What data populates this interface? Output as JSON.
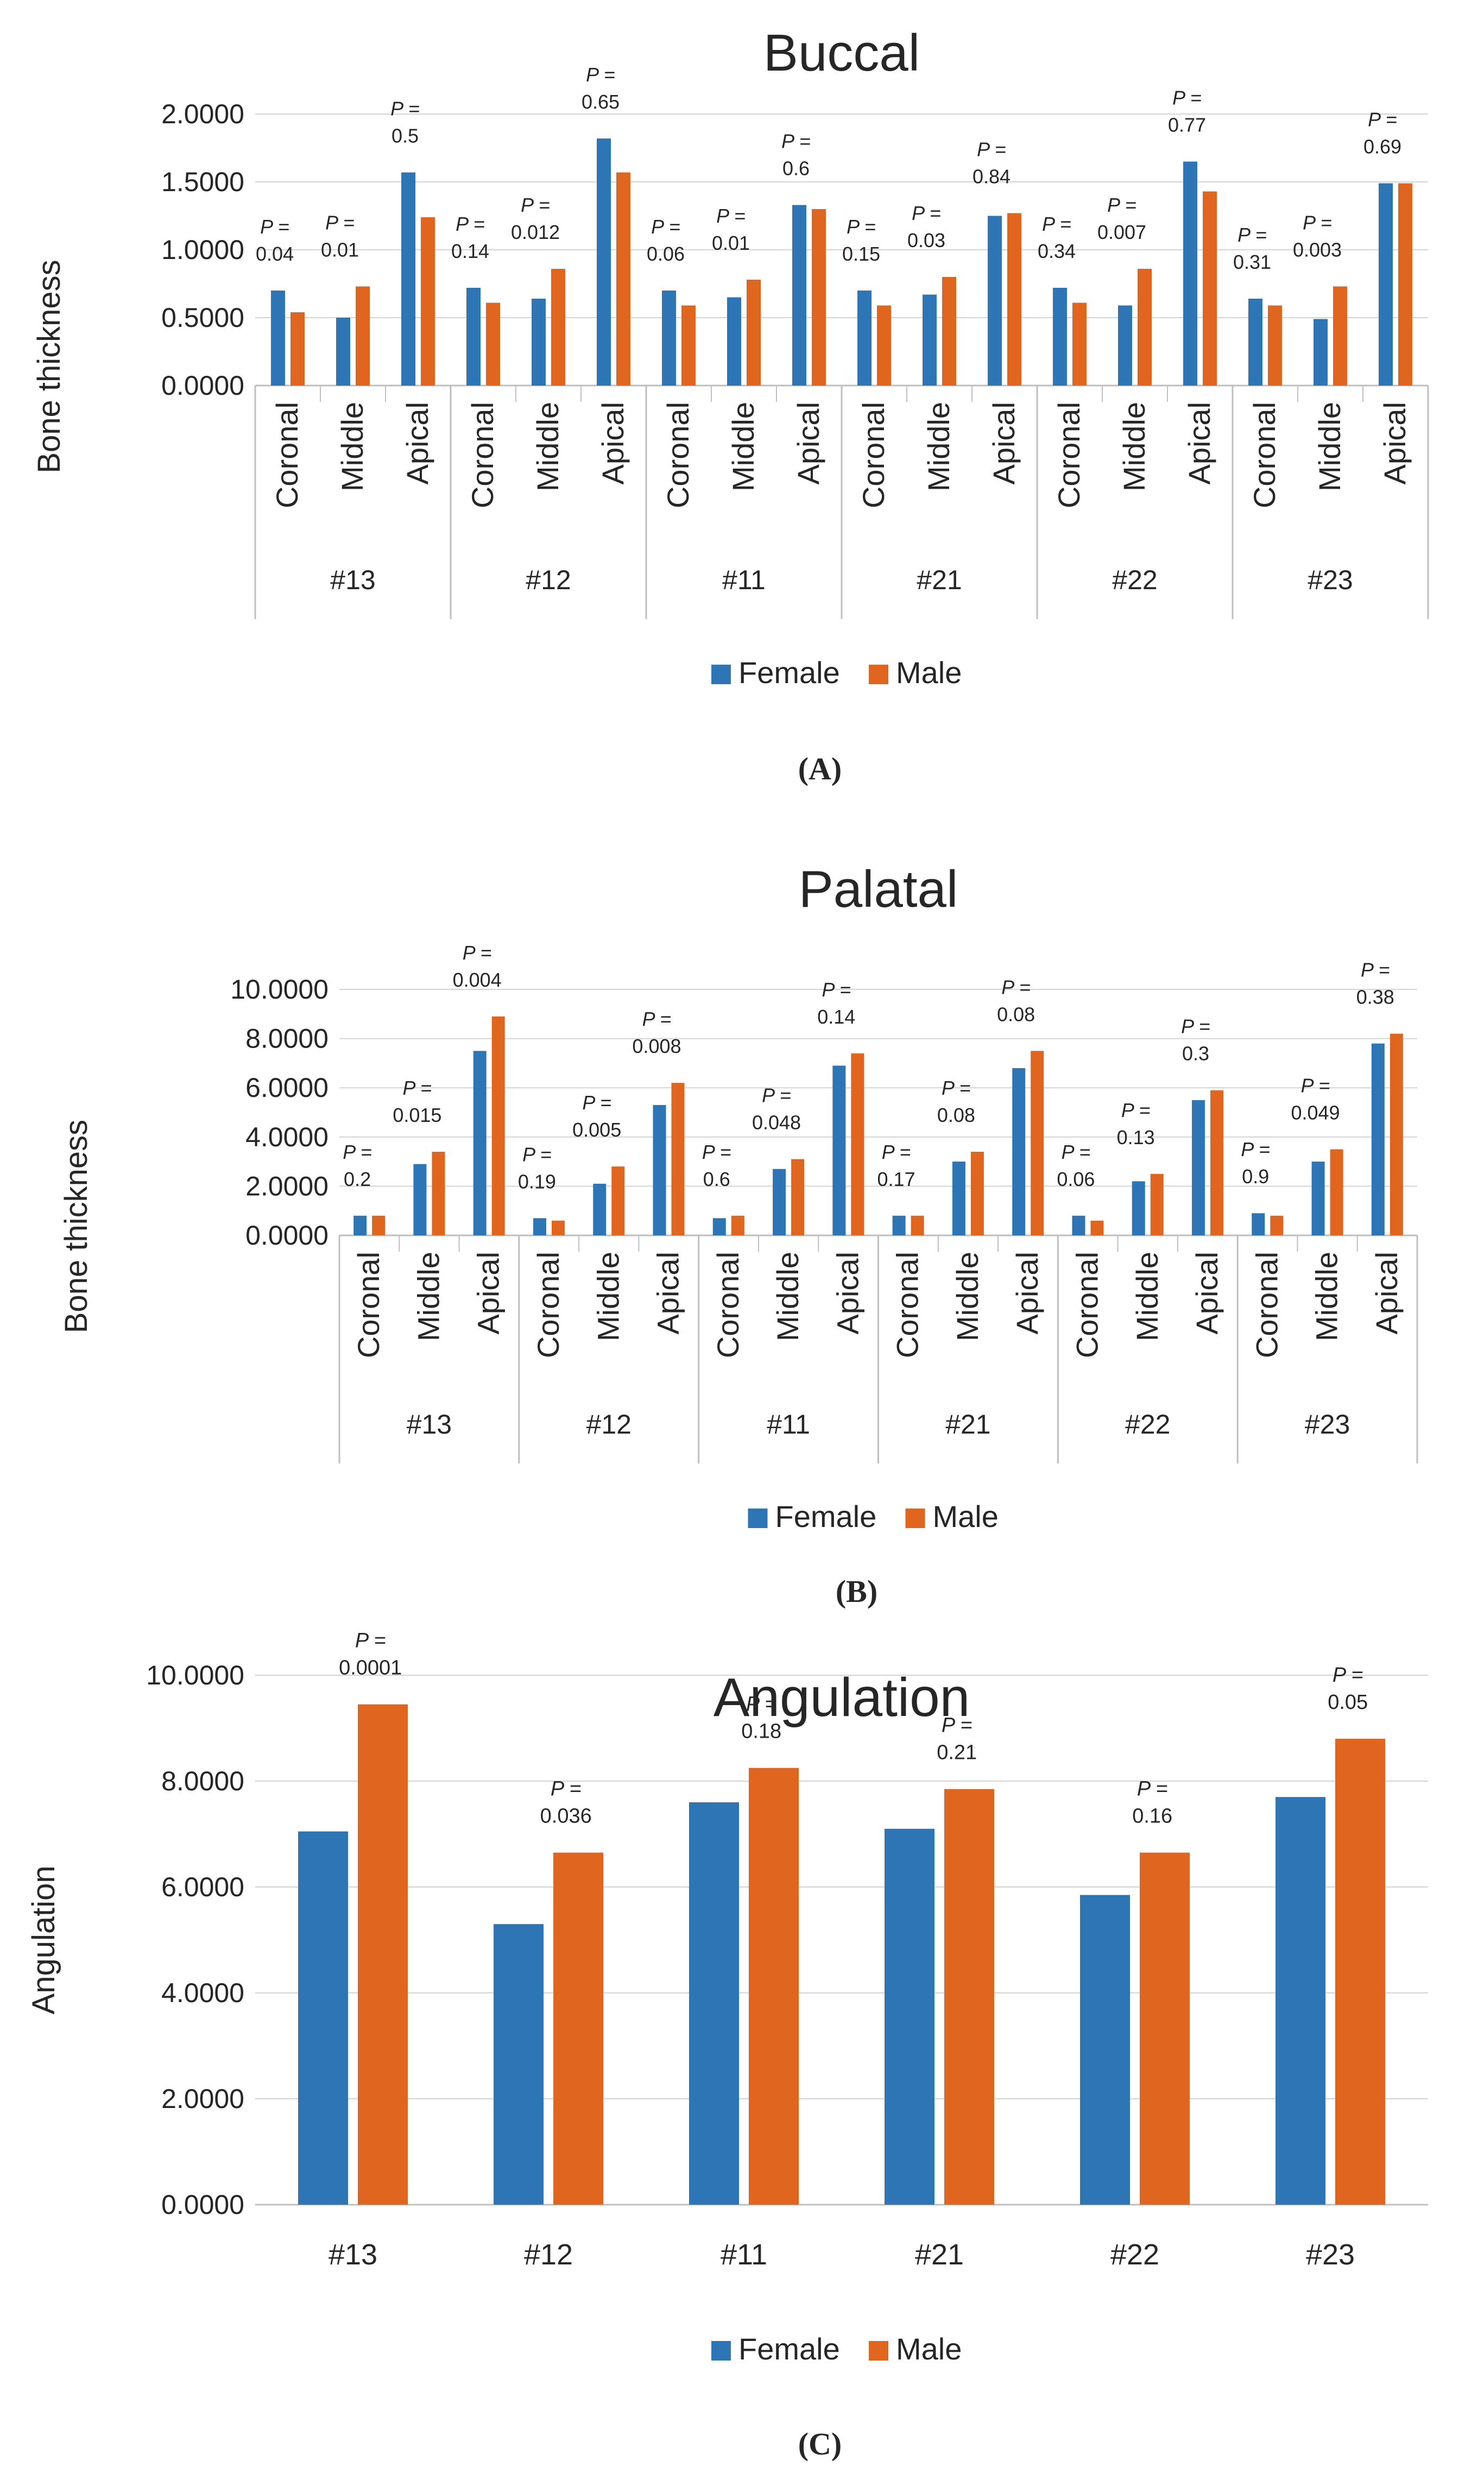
{
  "colors": {
    "female": "#2E75B6",
    "male": "#E0651E",
    "grid": "#d4d4d4",
    "axis": "#bfbfbf",
    "text": "#262626"
  },
  "chart_data": [
    {
      "id": "A",
      "type": "bar",
      "title": "Buccal",
      "caption": "(A)",
      "ylabel": "Bone thickness",
      "ylim": [
        0,
        2
      ],
      "yticks": [
        "0.0000",
        "0.5000",
        "1.0000",
        "1.5000",
        "2.0000"
      ],
      "ytick_values": [
        0,
        0.5,
        1,
        1.5,
        2
      ],
      "groups": [
        "#13",
        "#12",
        "#11",
        "#21",
        "#22",
        "#23"
      ],
      "subcategories": [
        "Coronal",
        "Middle",
        "Apical"
      ],
      "series": [
        {
          "name": "Female",
          "values": [
            0.7,
            0.5,
            1.57,
            0.72,
            0.64,
            1.82,
            0.7,
            0.65,
            1.33,
            0.7,
            0.67,
            1.25,
            0.72,
            0.59,
            1.65,
            0.64,
            0.49,
            1.49
          ]
        },
        {
          "name": "Male",
          "values": [
            0.54,
            0.73,
            1.24,
            0.61,
            0.86,
            1.57,
            0.59,
            0.78,
            1.3,
            0.59,
            0.8,
            1.27,
            0.61,
            0.86,
            1.43,
            0.59,
            0.73,
            1.49
          ]
        }
      ],
      "p_values": [
        "0.04",
        "0.01",
        "0.5",
        "0.14",
        "0.012",
        "0.65",
        "0.06",
        "0.01",
        "0.6",
        "0.15",
        "0.03",
        "0.84",
        "0.34",
        "0.007",
        "0.77",
        "0.31",
        "0.003",
        "0.69"
      ],
      "p_prefix": "P =",
      "legend": [
        "Female",
        "Male"
      ],
      "grid": true,
      "legend_position": "bottom"
    },
    {
      "id": "B",
      "type": "bar",
      "title": "Palatal",
      "caption": "(B)",
      "ylabel": "Bone thickness",
      "ylim": [
        0,
        10
      ],
      "yticks": [
        "0.0000",
        "2.0000",
        "4.0000",
        "6.0000",
        "8.0000",
        "10.0000"
      ],
      "ytick_values": [
        0,
        2,
        4,
        6,
        8,
        10
      ],
      "groups": [
        "#13",
        "#12",
        "#11",
        "#21",
        "#22",
        "#23"
      ],
      "subcategories": [
        "Coronal",
        "Middle",
        "Apical"
      ],
      "series": [
        {
          "name": "Female",
          "values": [
            0.8,
            2.9,
            7.5,
            0.7,
            2.1,
            5.3,
            0.7,
            2.7,
            6.9,
            0.8,
            3.0,
            6.8,
            0.8,
            2.2,
            5.5,
            0.9,
            3.0,
            7.8
          ]
        },
        {
          "name": "Male",
          "values": [
            0.8,
            3.4,
            8.9,
            0.6,
            2.8,
            6.2,
            0.8,
            3.1,
            7.4,
            0.8,
            3.4,
            7.5,
            0.6,
            2.5,
            5.9,
            0.8,
            3.5,
            8.2
          ]
        }
      ],
      "p_values": [
        "0.2",
        "0.015",
        "0.004",
        "0.19",
        "0.005",
        "0.008",
        "0.6",
        "0.048",
        "0.14",
        "0.17",
        "0.08",
        "0.08",
        "0.06",
        "0.13",
        "0.3",
        "0.9",
        "0.049",
        "0.38"
      ],
      "p_prefix": "P =",
      "legend": [
        "Female",
        "Male"
      ],
      "grid": true,
      "legend_position": "bottom"
    },
    {
      "id": "C",
      "type": "bar",
      "title": "Angulation",
      "caption": "(C)",
      "ylabel": "Angulation",
      "ylim": [
        0,
        10
      ],
      "yticks": [
        "0.0000",
        "2.0000",
        "4.0000",
        "6.0000",
        "8.0000",
        "10.0000"
      ],
      "ytick_values": [
        0,
        2,
        4,
        6,
        8,
        10
      ],
      "groups": [
        "#13",
        "#12",
        "#11",
        "#21",
        "#22",
        "#23"
      ],
      "series": [
        {
          "name": "Female",
          "values": [
            7.05,
            5.3,
            7.6,
            7.1,
            5.85,
            7.7
          ]
        },
        {
          "name": "Male",
          "values": [
            9.45,
            6.65,
            8.25,
            7.85,
            6.65,
            8.8
          ]
        }
      ],
      "p_values": [
        "0.0001",
        "0.036",
        "0.18",
        "0.21",
        "0.16",
        "0.05"
      ],
      "p_prefix": "P =",
      "legend": [
        "Female",
        "Male"
      ],
      "grid": true,
      "legend_position": "bottom"
    }
  ]
}
